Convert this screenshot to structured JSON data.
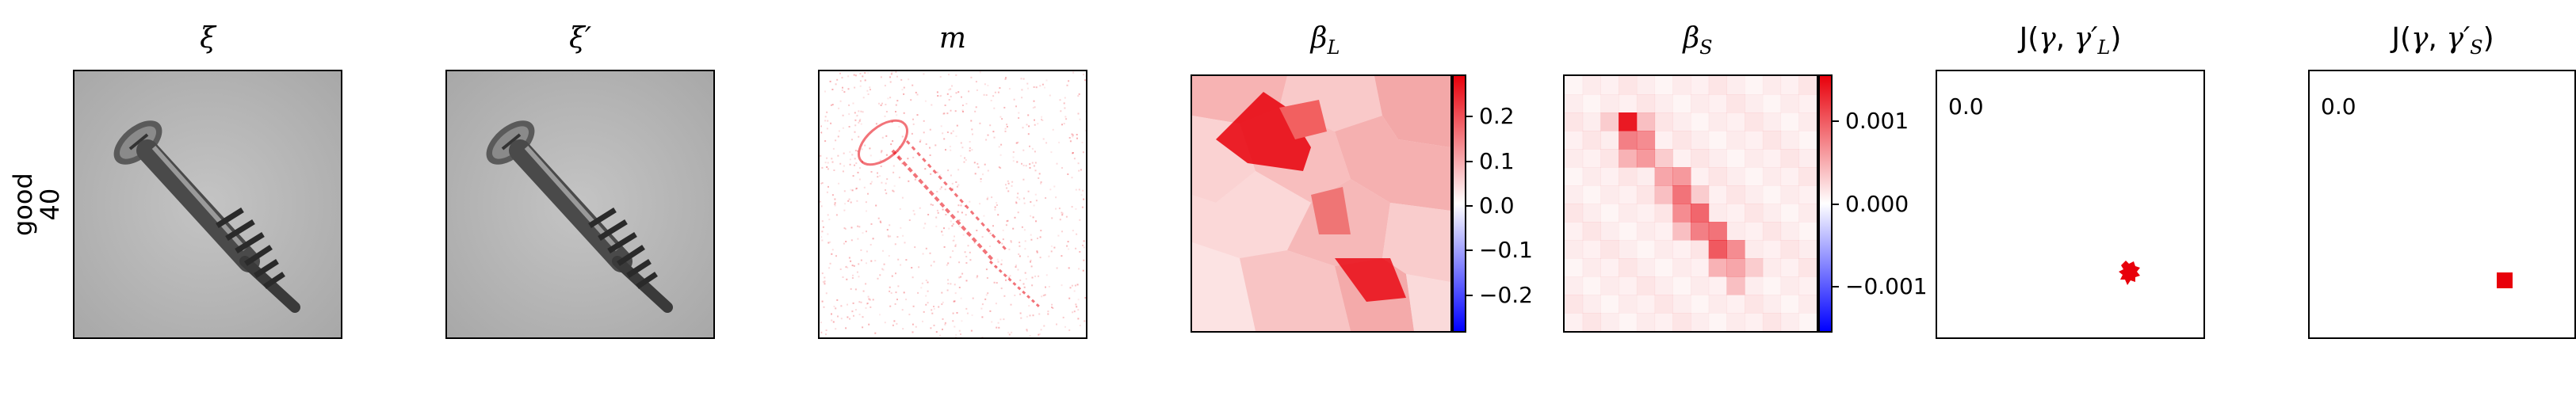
{
  "row_label": {
    "line1": "good",
    "line2": "40"
  },
  "chart_data": [
    {
      "type": "image",
      "title": "ξ",
      "content": "grayscale screw"
    },
    {
      "type": "image",
      "title": "ξ′",
      "content": "grayscale screw"
    },
    {
      "type": "heatmap",
      "title": "m",
      "colormap": "white-red"
    },
    {
      "type": "heatmap",
      "title": "β_L",
      "colormap": "bwr",
      "colorbar_ticks": [
        "0.2",
        "0.1",
        "0.0",
        "−0.1",
        "−0.2"
      ],
      "colorbar_range": [
        -0.27,
        0.27
      ]
    },
    {
      "type": "heatmap",
      "title": "β_S",
      "colormap": "bwr",
      "colorbar_ticks": [
        "0.001",
        "0.000",
        "−0.001"
      ],
      "colorbar_range": [
        -0.0016,
        0.0016
      ]
    },
    {
      "type": "heatmap",
      "title": "J(γ, γ′_L)",
      "score": "0.0"
    },
    {
      "type": "heatmap",
      "title": "J(γ, γ′_S)",
      "score": "0.0"
    }
  ],
  "colors": {
    "red": "#e8000b",
    "blue": "#0000ff",
    "gray_bg": "#b4b4b4"
  }
}
